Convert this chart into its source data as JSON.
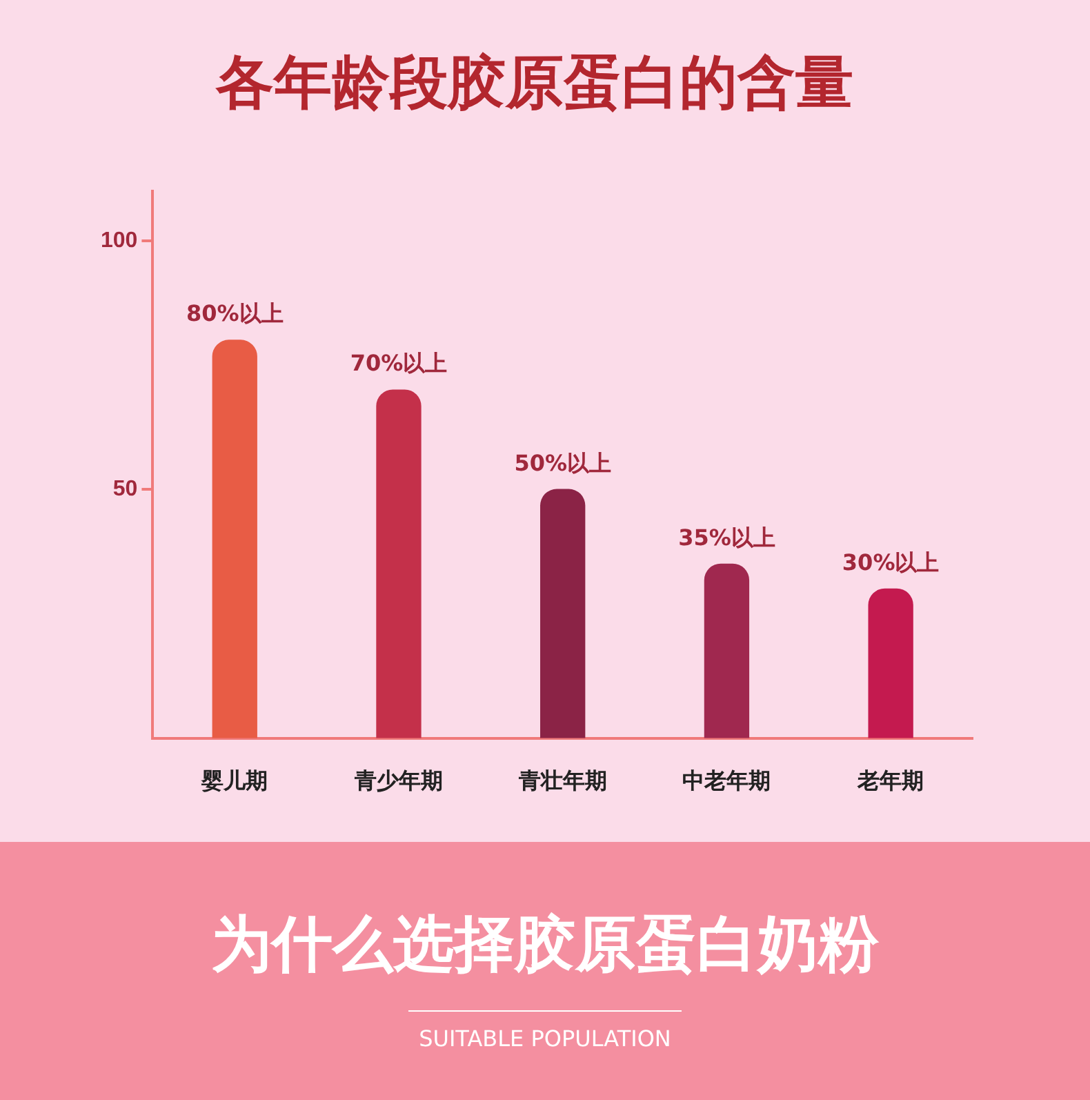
{
  "chart_data": {
    "type": "bar",
    "title": "各年龄段胶原蛋白的含量",
    "categories": [
      "婴儿期",
      "青少年期",
      "青壮年期",
      "中老年期",
      "老年期"
    ],
    "values": [
      80,
      70,
      50,
      35,
      30
    ],
    "colors": [
      "#e85c45",
      "#c4304a",
      "#8b2346",
      "#a0284f",
      "#c41a4f"
    ],
    "value_labels": [
      "80%以上",
      "70%以上",
      "50%以上",
      "35%以上",
      "30%以上"
    ],
    "ylim": [
      0,
      110
    ],
    "yticks": [
      50,
      100
    ],
    "grid": false,
    "legend": false,
    "annotations": [
      "为什么选择胶原蛋白奶粉",
      "SUITABLE POPULATION"
    ]
  }
}
